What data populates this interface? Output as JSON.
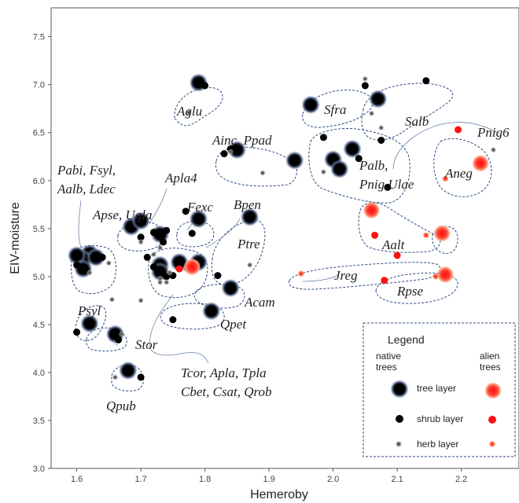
{
  "chart_data": {
    "type": "scatter",
    "xlabel": "Hemeroby",
    "ylabel": "EIV-moisture",
    "xlim": [
      1.56,
      2.29
    ],
    "ylim": [
      3.0,
      7.8
    ],
    "xticks": [
      "1.6",
      "1.7",
      "1.8",
      "1.9",
      "2.0",
      "2.1",
      "2.2"
    ],
    "yticks": [
      "3.0",
      "3.5",
      "4.0",
      "4.5",
      "5.0",
      "5.5",
      "6.0",
      "6.5",
      "7.0",
      "7.5"
    ],
    "grid": false,
    "legend": {
      "title": "Legend",
      "placement": "bottom-right",
      "col_native": "native\ntrees",
      "col_alien": "alien\ntrees",
      "rows": [
        "tree layer",
        "shrub layer",
        "herb layer"
      ]
    },
    "colors": {
      "native": "#000000",
      "native_halo": "#3a4a6a",
      "alien": "#ff1a1a",
      "outline": "#2c4a80"
    },
    "group_labels": [
      "Aglu",
      "Ainc, Ppad",
      "Pabi, Fsyl,",
      "Aalb, Ldec",
      "Apla4",
      "Apse, Ugla",
      "Fexc",
      "Bpen",
      "Ptre",
      "Acam",
      "Qpet",
      "Psyl",
      "Stor",
      "Qpub",
      "Tcor, Apla, Tpla",
      "Cbet, Csat, Qrob",
      "Sfra",
      "Salb",
      "Pnig6",
      "Palb,",
      "Pnig,Ulae",
      "Aneg",
      "Aalt",
      "Jreg",
      "Rpse"
    ],
    "series": [
      {
        "name": "tree layer (native)",
        "points": [
          [
            1.62,
            5.24
          ],
          [
            1.61,
            5.18
          ],
          [
            1.6,
            5.22
          ],
          [
            1.61,
            5.08
          ],
          [
            1.63,
            5.2
          ],
          [
            1.66,
            4.4
          ],
          [
            1.62,
            4.51
          ],
          [
            1.685,
            5.52
          ],
          [
            1.7,
            5.58
          ],
          [
            1.73,
            5.44
          ],
          [
            1.79,
            5.6
          ],
          [
            1.73,
            5.12
          ],
          [
            1.73,
            5.05
          ],
          [
            1.79,
            5.15
          ],
          [
            1.76,
            5.15
          ],
          [
            1.84,
            4.88
          ],
          [
            1.81,
            4.64
          ],
          [
            1.68,
            4.02
          ],
          [
            1.79,
            7.02
          ],
          [
            1.85,
            6.32
          ],
          [
            1.94,
            6.21
          ],
          [
            1.87,
            5.62
          ],
          [
            1.965,
            6.79
          ],
          [
            2.07,
            6.85
          ],
          [
            2.0,
            6.22
          ],
          [
            2.03,
            6.33
          ],
          [
            2.01,
            6.12
          ]
        ]
      },
      {
        "name": "shrub layer (native)",
        "points": [
          [
            1.8,
            6.99
          ],
          [
            1.83,
            6.28
          ],
          [
            1.84,
            6.33
          ],
          [
            1.64,
            5.2
          ],
          [
            1.6,
            5.12
          ],
          [
            1.72,
            5.46
          ],
          [
            1.7,
            5.41
          ],
          [
            1.74,
            5.48
          ],
          [
            1.735,
            5.36
          ],
          [
            1.71,
            5.2
          ],
          [
            1.72,
            5.1
          ],
          [
            1.74,
            5.0
          ],
          [
            1.77,
            5.68
          ],
          [
            1.78,
            5.45
          ],
          [
            1.82,
            5.01
          ],
          [
            1.75,
            5.01
          ],
          [
            1.84,
            4.85
          ],
          [
            1.75,
            4.55
          ],
          [
            1.6,
            4.42
          ],
          [
            1.665,
            4.34
          ],
          [
            1.7,
            3.95
          ],
          [
            1.985,
            6.45
          ],
          [
            2.04,
            6.23
          ],
          [
            2.075,
            6.42
          ],
          [
            2.085,
            5.93
          ],
          [
            2.05,
            6.99
          ],
          [
            2.145,
            7.04
          ]
        ]
      },
      {
        "name": "herb layer (native)",
        "points": [
          [
            1.775,
            6.71
          ],
          [
            1.84,
            6.3
          ],
          [
            1.89,
            6.08
          ],
          [
            1.65,
            5.14
          ],
          [
            1.62,
            5.04
          ],
          [
            1.73,
            5.3
          ],
          [
            1.7,
            5.36
          ],
          [
            1.72,
            5.23
          ],
          [
            1.745,
            5.04
          ],
          [
            1.77,
            5.08
          ],
          [
            1.73,
            4.98
          ],
          [
            1.73,
            4.94
          ],
          [
            1.74,
            4.94
          ],
          [
            1.87,
            5.12
          ],
          [
            1.7,
            4.75
          ],
          [
            1.655,
            4.76
          ],
          [
            1.67,
            4.4
          ],
          [
            1.66,
            3.95
          ],
          [
            2.06,
            6.7
          ],
          [
            2.075,
            6.55
          ],
          [
            1.985,
            6.09
          ],
          [
            2.05,
            7.06
          ],
          [
            2.25,
            6.32
          ]
        ]
      },
      {
        "name": "tree layer (alien)",
        "points": [
          [
            2.06,
            5.69
          ],
          [
            2.17,
            5.45
          ],
          [
            2.23,
            6.18
          ],
          [
            2.175,
            5.02
          ],
          [
            1.78,
            5.1
          ]
        ]
      },
      {
        "name": "shrub layer (alien)",
        "points": [
          [
            2.065,
            5.43
          ],
          [
            2.1,
            5.22
          ],
          [
            2.08,
            4.96
          ],
          [
            2.195,
            6.53
          ],
          [
            1.76,
            5.08
          ]
        ]
      },
      {
        "name": "herb layer (alien)",
        "points": [
          [
            2.145,
            5.43
          ],
          [
            1.95,
            5.03
          ],
          [
            2.175,
            6.02
          ],
          [
            2.16,
            5.0
          ]
        ]
      }
    ]
  }
}
